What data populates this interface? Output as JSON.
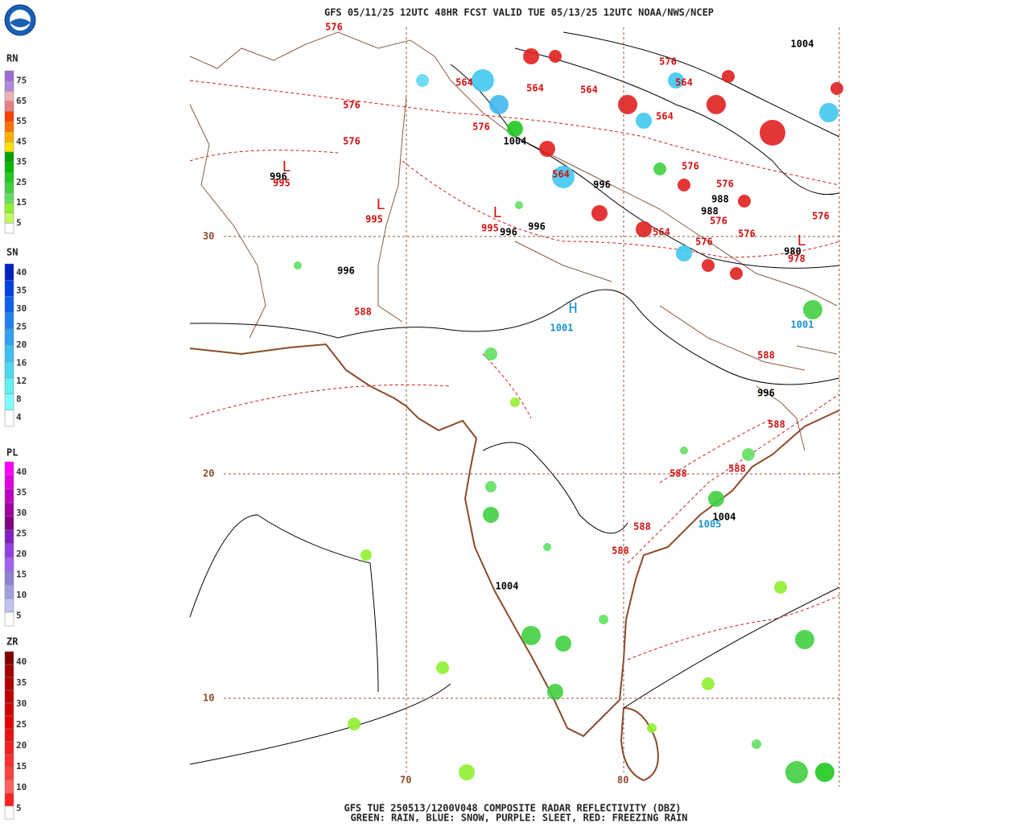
{
  "header": {
    "title": "GFS 05/11/25 12UTC 48HR FCST VALID TUE 05/13/25 12UTC NOAA/NWS/NCEP"
  },
  "legends": [
    {
      "name": "RN",
      "labels": [
        "75",
        "65",
        "55",
        "45",
        "35",
        "25",
        "15",
        "5"
      ],
      "colors": [
        "#9c6cd4",
        "#b088e0",
        "#f0b0b8",
        "#e88080",
        "#ff4000",
        "#ff7000",
        "#ffb000",
        "#ffe000",
        "#00a000",
        "#00b800",
        "#20c820",
        "#40d040",
        "#60e060",
        "#90f030",
        "#c0ff60",
        "#ffffff"
      ]
    },
    {
      "name": "SN",
      "labels": [
        "40",
        "35",
        "30",
        "25",
        "20",
        "16",
        "12",
        "8",
        "4"
      ],
      "colors": [
        "#0020c0",
        "#0040e0",
        "#1060f0",
        "#2080f0",
        "#30a0f0",
        "#40c0f0",
        "#50d8f0",
        "#60f0f0",
        "#80ffff",
        "#ffffff"
      ]
    },
    {
      "name": "PL",
      "labels": [
        "40",
        "35",
        "30",
        "25",
        "20",
        "15",
        "10",
        "5"
      ],
      "colors": [
        "#ff00ff",
        "#e000e0",
        "#c000c0",
        "#a000a0",
        "#800080",
        "#8020c0",
        "#9040e0",
        "#a060f0",
        "#9080d0",
        "#a0a0e0",
        "#c0c0f0",
        "#ffffff"
      ]
    },
    {
      "name": "ZR",
      "labels": [
        "40",
        "35",
        "30",
        "25",
        "20",
        "15",
        "10",
        "5"
      ],
      "colors": [
        "#800000",
        "#a00000",
        "#b00000",
        "#c00000",
        "#d00000",
        "#e00000",
        "#e81010",
        "#f02020",
        "#f83030",
        "#ff4040",
        "#ff6060",
        "#ff2020",
        "#ffffff"
      ]
    }
  ],
  "grid_labels": {
    "lat": [
      "30",
      "20",
      "10"
    ],
    "lon": [
      "70",
      "80"
    ]
  },
  "contour_labels": [
    {
      "text": "1004",
      "kind": "pressure"
    },
    {
      "text": "996",
      "kind": "pressure"
    },
    {
      "text": "1004",
      "kind": "pressure"
    },
    {
      "text": "996",
      "kind": "pressure"
    },
    {
      "text": "988",
      "kind": "pressure"
    },
    {
      "text": "988",
      "kind": "pressure"
    },
    {
      "text": "996",
      "kind": "pressure"
    },
    {
      "text": "996",
      "kind": "pressure"
    },
    {
      "text": "996",
      "kind": "pressure"
    },
    {
      "text": "980",
      "kind": "pressure"
    },
    {
      "text": "996",
      "kind": "pressure"
    },
    {
      "text": "1004",
      "kind": "pressure"
    },
    {
      "text": "1004",
      "kind": "pressure"
    },
    {
      "text": "576",
      "kind": "thickness"
    },
    {
      "text": "564",
      "kind": "thickness"
    },
    {
      "text": "576",
      "kind": "thickness"
    },
    {
      "text": "576",
      "kind": "thickness"
    },
    {
      "text": "576",
      "kind": "thickness"
    },
    {
      "text": "564",
      "kind": "thickness"
    },
    {
      "text": "564",
      "kind": "thickness"
    },
    {
      "text": "576",
      "kind": "thickness"
    },
    {
      "text": "564",
      "kind": "thickness"
    },
    {
      "text": "564",
      "kind": "thickness"
    },
    {
      "text": "564",
      "kind": "thickness"
    },
    {
      "text": "576",
      "kind": "thickness"
    },
    {
      "text": "576",
      "kind": "thickness"
    },
    {
      "text": "576",
      "kind": "thickness"
    },
    {
      "text": "576",
      "kind": "thickness"
    },
    {
      "text": "564",
      "kind": "thickness"
    },
    {
      "text": "576",
      "kind": "thickness"
    },
    {
      "text": "576",
      "kind": "thickness"
    },
    {
      "text": "588",
      "kind": "thickness"
    },
    {
      "text": "588",
      "kind": "thickness"
    },
    {
      "text": "588",
      "kind": "thickness"
    },
    {
      "text": "588",
      "kind": "thickness"
    },
    {
      "text": "588",
      "kind": "thickness"
    },
    {
      "text": "588",
      "kind": "thickness"
    },
    {
      "text": "588",
      "kind": "thickness"
    },
    {
      "text": "995",
      "kind": "thickness"
    },
    {
      "text": "995",
      "kind": "thickness"
    },
    {
      "text": "995",
      "kind": "thickness"
    },
    {
      "text": "978",
      "kind": "thickness"
    },
    {
      "text": "1001",
      "kind": "high"
    },
    {
      "text": "1001",
      "kind": "high"
    },
    {
      "text": "1005",
      "kind": "high"
    }
  ],
  "centers": [
    {
      "text": "L",
      "kind": "thickness"
    },
    {
      "text": "L",
      "kind": "thickness"
    },
    {
      "text": "L",
      "kind": "thickness"
    },
    {
      "text": "L",
      "kind": "thickness"
    },
    {
      "text": "H",
      "kind": "high"
    }
  ],
  "footer": {
    "line1": "GFS TUE 250513/1200V048 COMPOSITE RADAR REFLECTIVITY (DBZ)",
    "line2": "GREEN: RAIN, BLUE: SNOW, PURPLE: SLEET, RED: FREEZING RAIN"
  }
}
